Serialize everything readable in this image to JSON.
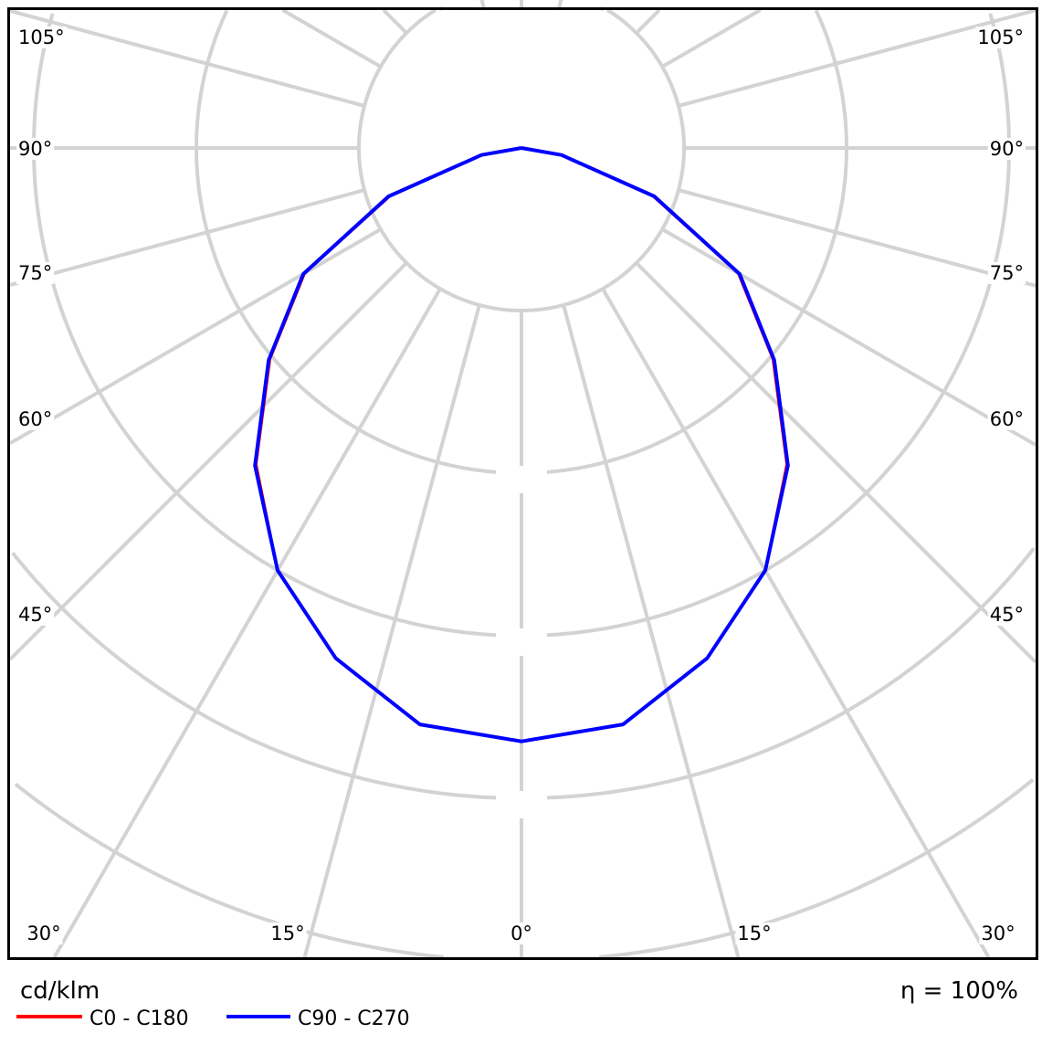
{
  "chart_data": {
    "type": "polar",
    "unit_label": "cd/klm",
    "efficiency_label": "η = 100%",
    "angle_labels": {
      "left": [
        "105°",
        "90°",
        "75°",
        "60°",
        "45°"
      ],
      "right": [
        "105°",
        "90°",
        "75°",
        "60°",
        "45°"
      ],
      "bottom": [
        "30°",
        "15°",
        "0°",
        "15°",
        "30°"
      ]
    },
    "angle_grid_step_deg": 15,
    "radial_grid_step": 100,
    "grid": true,
    "legend_position": "bottom-left",
    "gamma": [
      0,
      10,
      20,
      30,
      40,
      50,
      60,
      70,
      80,
      90
    ],
    "series": [
      {
        "name": "C0 - C180",
        "color": "#ff0000",
        "values": [
          365,
          360,
          334,
          300,
          254,
          202,
          154,
          86,
          25,
          0
        ]
      },
      {
        "name": "C90 - C270",
        "color": "#0000ff",
        "values": [
          365,
          360,
          334,
          300,
          255,
          203,
          155,
          87,
          25,
          0
        ]
      }
    ]
  }
}
